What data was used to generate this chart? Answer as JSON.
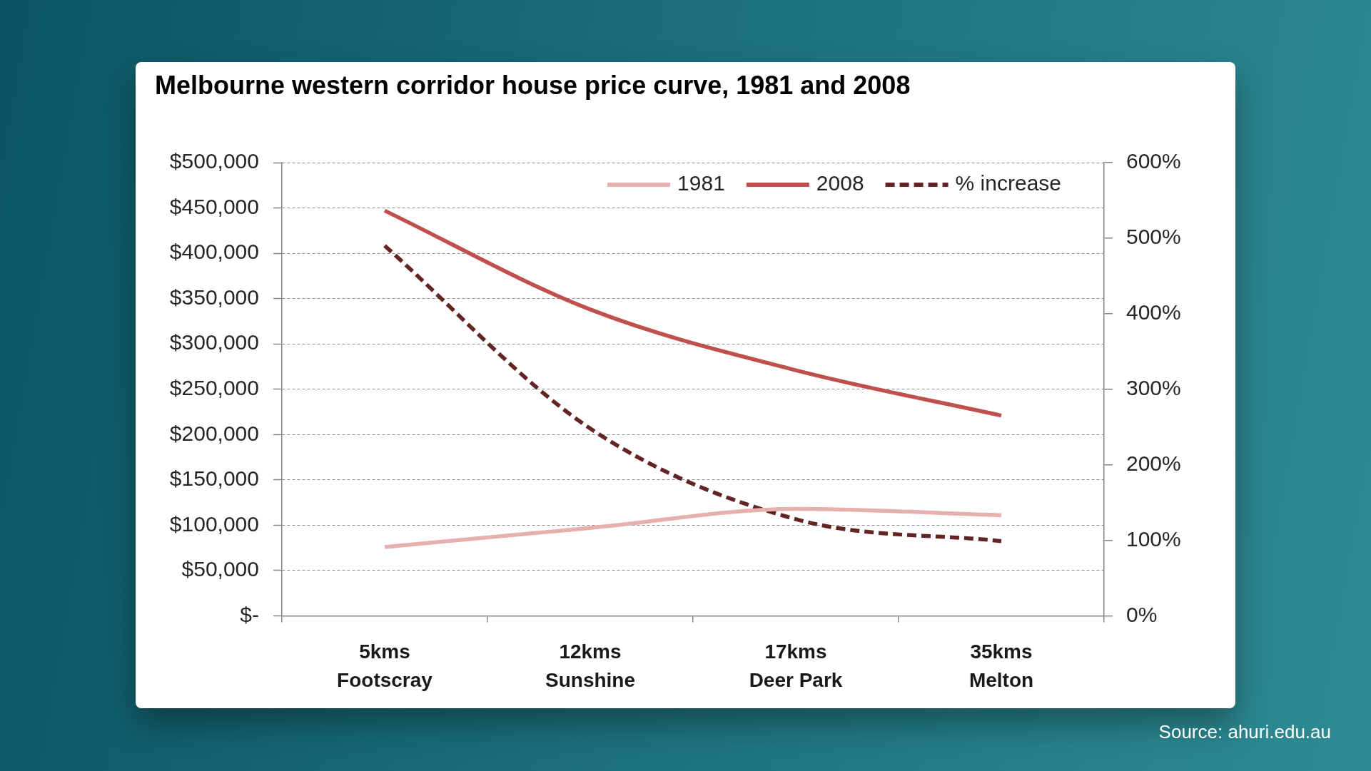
{
  "chart_data": {
    "type": "line",
    "title": "Melbourne western corridor house price curve, 1981 and 2008",
    "categories": [
      "5kms\nFootscray",
      "12kms\nSunshine",
      "17kms\nDeer Park",
      "35kms\nMelton"
    ],
    "series": [
      {
        "name": "1981",
        "color": "#e6b0af",
        "values": [
          76000,
          97000,
          118000,
          111000
        ]
      },
      {
        "name": "2008",
        "color": "#c0504d",
        "values": [
          447000,
          338000,
          271000,
          221000
        ]
      },
      {
        "name": "% increase",
        "color": "#632523",
        "values": [
          490,
          248,
          128,
          99
        ],
        "axis": "y2",
        "line_style": "dashed"
      }
    ],
    "ylim": [
      0,
      500000
    ],
    "yticks": [
      {
        "value": 0,
        "label": "$-"
      },
      {
        "value": 50000,
        "label": "$50,000"
      },
      {
        "value": 100000,
        "label": "$100,000"
      },
      {
        "value": 150000,
        "label": "$150,000"
      },
      {
        "value": 200000,
        "label": "$200,000"
      },
      {
        "value": 250000,
        "label": "$250,000"
      },
      {
        "value": 300000,
        "label": "$300,000"
      },
      {
        "value": 350000,
        "label": "$350,000"
      },
      {
        "value": 400000,
        "label": "$400,000"
      },
      {
        "value": 450000,
        "label": "$450,000"
      },
      {
        "value": 500000,
        "label": "$500,000"
      }
    ],
    "y2lim": [
      0,
      600
    ],
    "y2ticks": [
      {
        "value": 0,
        "label": "0%"
      },
      {
        "value": 100,
        "label": "100%"
      },
      {
        "value": 200,
        "label": "200%"
      },
      {
        "value": 300,
        "label": "300%"
      },
      {
        "value": 400,
        "label": "400%"
      },
      {
        "value": 500,
        "label": "500%"
      },
      {
        "value": 600,
        "label": "600%"
      }
    ],
    "grid": "y",
    "legend": "top right",
    "line_style": "solid",
    "marker": "none",
    "annotations": [
      "Source: ahuri.edu.au"
    ]
  }
}
